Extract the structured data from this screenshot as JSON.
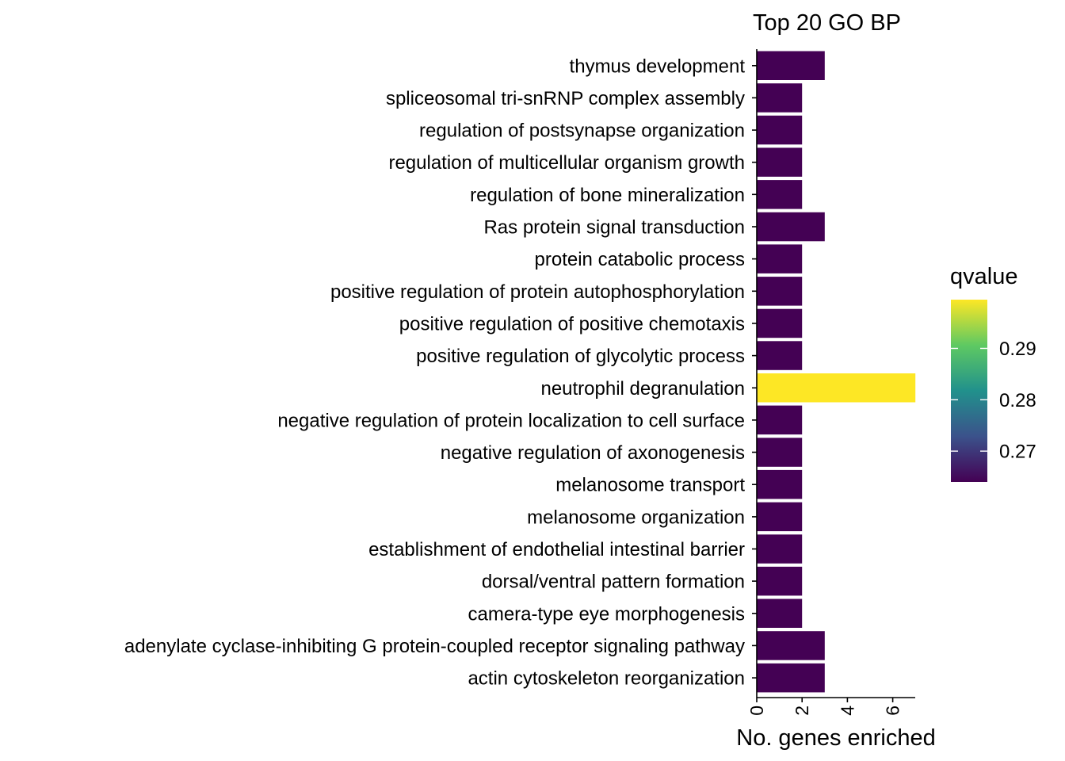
{
  "chart_data": {
    "type": "bar",
    "orientation": "horizontal",
    "title": "Top 20 GO BP",
    "xlabel": "No. genes enriched",
    "ylabel": "",
    "xlim": [
      0,
      7
    ],
    "xticks": [
      0,
      2,
      4,
      6
    ],
    "categories": [
      "thymus development",
      "spliceosomal tri-snRNP complex assembly",
      "regulation of postsynapse organization",
      "regulation of multicellular organism growth",
      "regulation of bone mineralization",
      "Ras protein signal transduction",
      "protein catabolic process",
      "positive regulation of protein autophosphorylation",
      "positive regulation of positive chemotaxis",
      "positive regulation of glycolytic process",
      "neutrophil degranulation",
      "negative regulation of protein localization to cell surface",
      "negative regulation of axonogenesis",
      "melanosome transport",
      "melanosome organization",
      "establishment of endothelial intestinal barrier",
      "dorsal/ventral pattern formation",
      "camera-type eye morphogenesis",
      "adenylate cyclase-inhibiting G protein-coupled receptor signaling pathway",
      "actin cytoskeleton reorganization"
    ],
    "values": [
      3,
      2,
      2,
      2,
      2,
      3,
      2,
      2,
      2,
      2,
      7,
      2,
      2,
      2,
      2,
      2,
      2,
      2,
      3,
      3
    ],
    "qvalues": [
      0.264,
      0.264,
      0.264,
      0.264,
      0.264,
      0.264,
      0.264,
      0.264,
      0.264,
      0.264,
      0.2995,
      0.264,
      0.264,
      0.264,
      0.264,
      0.264,
      0.264,
      0.264,
      0.264,
      0.264
    ],
    "legend": {
      "title": "qvalue",
      "placement": "right",
      "range": [
        0.264,
        0.2995
      ],
      "ticks": [
        0.27,
        0.28,
        0.29
      ],
      "tick_labels": [
        "0.27",
        "0.28",
        "0.29"
      ]
    },
    "colorscale": [
      "#440154",
      "#3b528b",
      "#21918c",
      "#5ec962",
      "#fde725"
    ],
    "grid": false
  }
}
